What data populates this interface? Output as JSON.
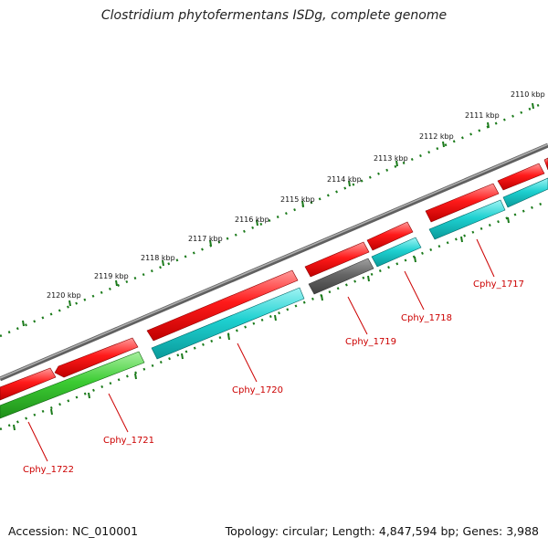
{
  "title": "Clostridium phytofermentans ISDg, complete genome",
  "footer": {
    "accession": "Accession: NC_010001",
    "stats": "Topology: circular; Length: 4,847,594 bp; Genes: 3,988"
  },
  "ruler": {
    "ticks": [
      "2110 kbp",
      "2111 kbp",
      "2112 kbp",
      "2113 kbp",
      "2114 kbp",
      "2115 kbp",
      "2116 kbp",
      "2117 kbp",
      "2118 kbp",
      "2119 kbp",
      "2120 kbp"
    ]
  },
  "gene_labels": [
    "Cphy_1717",
    "Cphy_1718",
    "Cphy_1719",
    "Cphy_1720",
    "Cphy_1721",
    "Cphy_1722"
  ],
  "colors": {
    "backbone": "#808080",
    "forward_gene": "#ff0000",
    "reverse_gene": "#22cccc",
    "rna_gene": "#606060",
    "highlight_gene": "#33cc33",
    "tick": "#1a7a1a",
    "label": "#cc0000"
  }
}
